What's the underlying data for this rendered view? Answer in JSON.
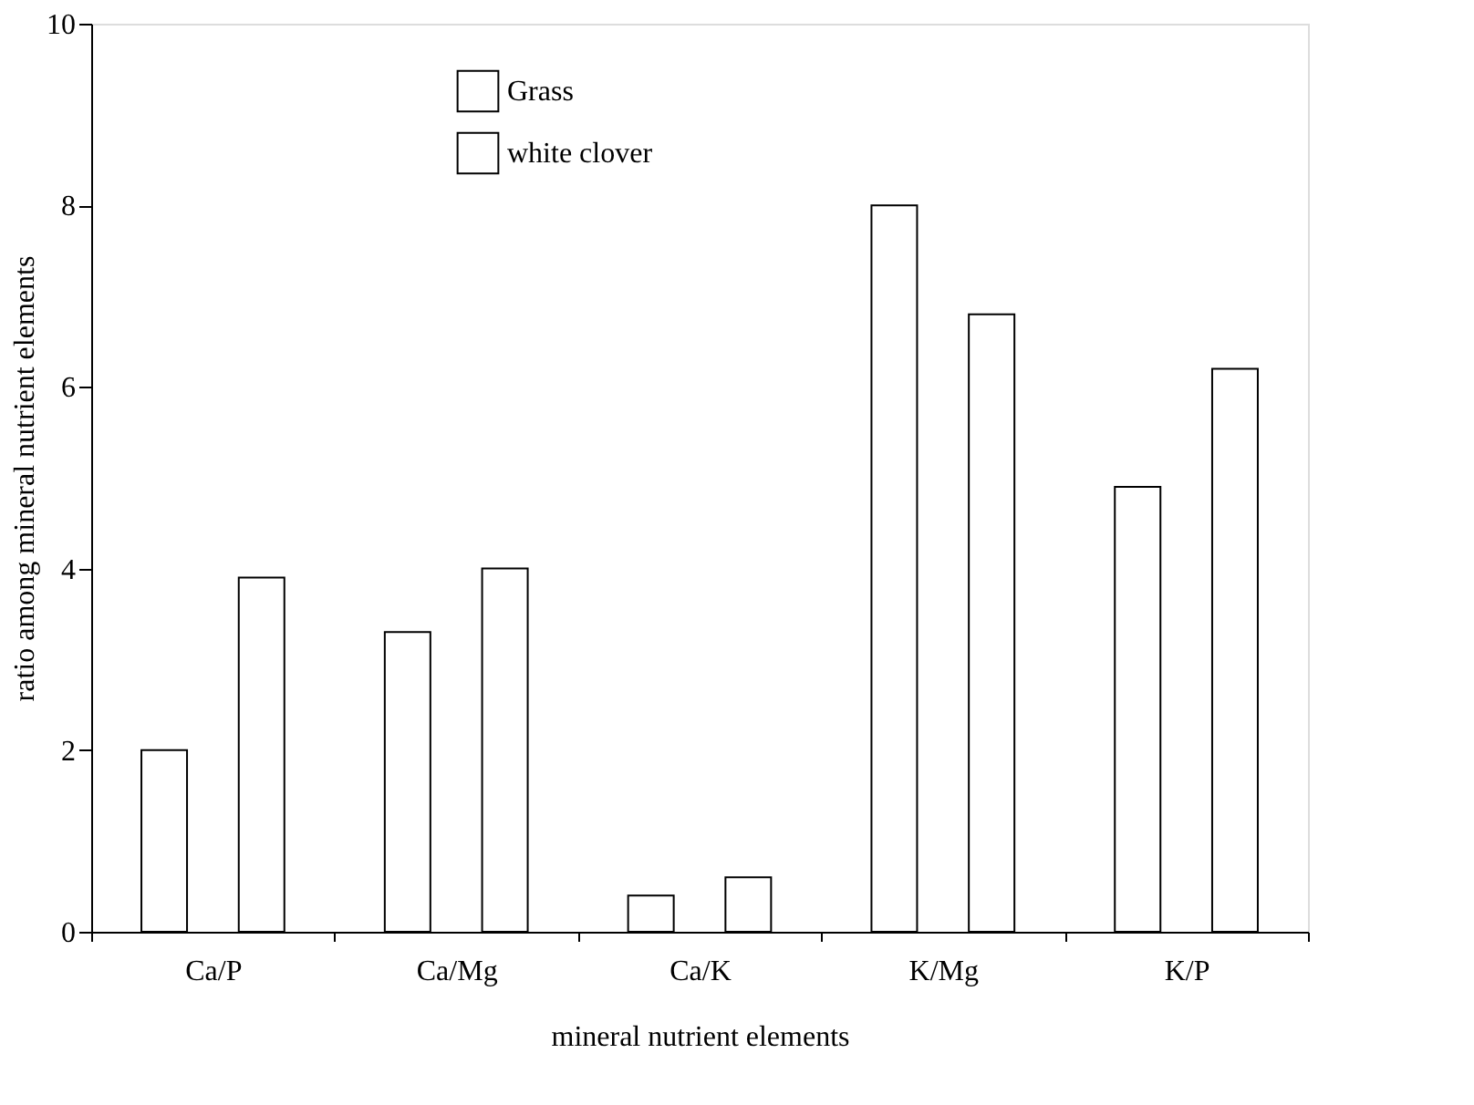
{
  "chart_data": {
    "type": "bar",
    "xlabel": "mineral nutrient elements",
    "ylabel": "ratio among mineral nutrient elements",
    "categories": [
      "Ca/P",
      "Ca/Mg",
      "Ca/K",
      "K/Mg",
      "K/P"
    ],
    "series": [
      {
        "name": "Grass",
        "color": "#ffffff",
        "values": [
          2.0,
          3.3,
          0.4,
          8.0,
          4.9
        ]
      },
      {
        "name": "white clover",
        "color": "#ffffff",
        "values": [
          3.9,
          4.0,
          0.6,
          6.8,
          6.2
        ]
      }
    ],
    "ylim": [
      0,
      10
    ],
    "yticks": [
      0,
      2,
      4,
      6,
      8,
      10
    ],
    "grid": false,
    "legend": "top"
  }
}
